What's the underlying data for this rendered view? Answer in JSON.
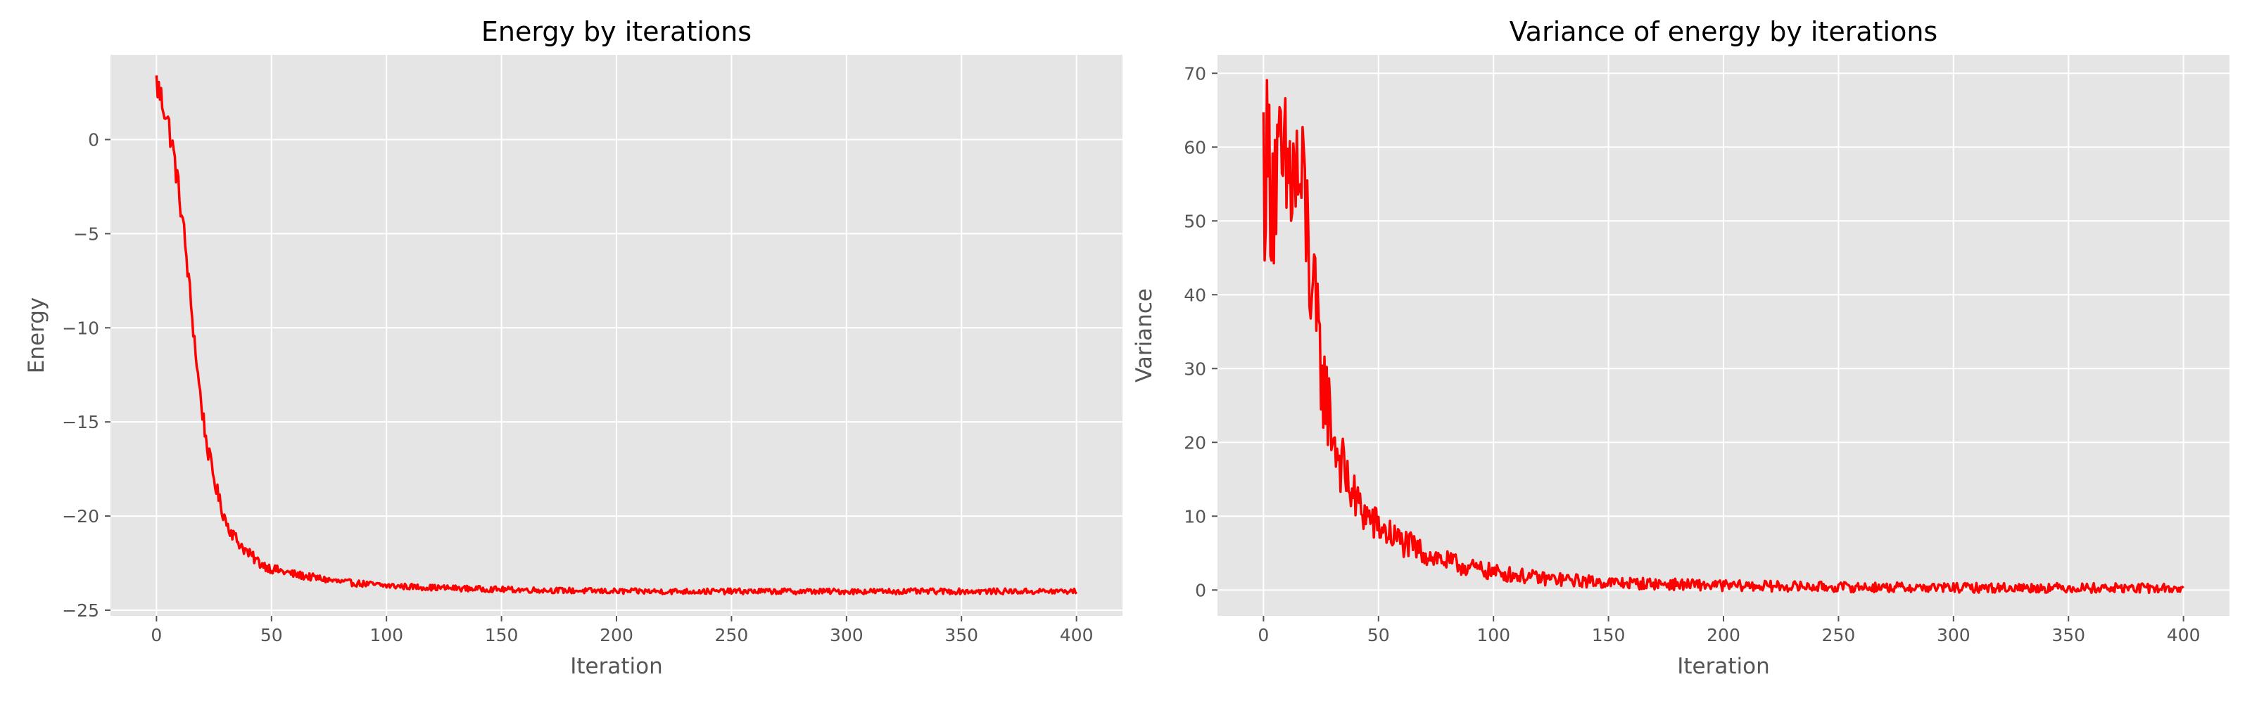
{
  "chart_data": [
    {
      "type": "line",
      "title": "Energy by iterations",
      "xlabel": "Iteration",
      "ylabel": "Energy",
      "xlim": [
        -20,
        420
      ],
      "ylim": [
        -25.3,
        4.5
      ],
      "xticks": [
        0,
        50,
        100,
        150,
        200,
        250,
        300,
        350,
        400
      ],
      "yticks": [
        0,
        -5,
        -10,
        -15,
        -20,
        -25
      ],
      "ytick_labels": [
        "0",
        "−5",
        "−10",
        "−15",
        "−20",
        "−25"
      ],
      "grid": true,
      "series": [
        {
          "color": "#ff0000",
          "x": [
            0,
            2,
            4,
            6,
            8,
            10,
            12,
            14,
            16,
            18,
            20,
            22,
            25,
            28,
            31,
            35,
            40,
            45,
            50,
            60,
            70,
            80,
            100,
            120,
            150,
            200,
            250,
            300,
            350,
            400
          ],
          "y": [
            3.0,
            2.2,
            1.5,
            0.3,
            -1.2,
            -3.0,
            -5.0,
            -7.5,
            -10.0,
            -12.5,
            -14.5,
            -16.3,
            -18.0,
            -19.5,
            -20.5,
            -21.3,
            -22.0,
            -22.5,
            -22.8,
            -23.1,
            -23.3,
            -23.5,
            -23.7,
            -23.8,
            -23.9,
            -24.0,
            -24.0,
            -24.0,
            -24.0,
            -24.0
          ],
          "noise": 0.15
        }
      ]
    },
    {
      "type": "line",
      "title": "Variance of energy by iterations",
      "xlabel": "Iteration",
      "ylabel": "Variance",
      "xlim": [
        -20,
        420
      ],
      "ylim": [
        -3.5,
        72.5
      ],
      "xticks": [
        0,
        50,
        100,
        150,
        200,
        250,
        300,
        350,
        400
      ],
      "yticks": [
        0,
        10,
        20,
        30,
        40,
        50,
        60,
        70
      ],
      "ytick_labels": [
        "0",
        "10",
        "20",
        "30",
        "40",
        "50",
        "60",
        "70"
      ],
      "grid": true,
      "series": [
        {
          "color": "#ff0000",
          "x": [
            0,
            3,
            6,
            9,
            12,
            15,
            18,
            20,
            22,
            25,
            28,
            31,
            35,
            40,
            45,
            50,
            60,
            70,
            80,
            90,
            100,
            120,
            150,
            200,
            250,
            300,
            350,
            400
          ],
          "y": [
            58,
            57,
            55,
            55,
            56,
            55,
            52,
            45,
            38,
            30,
            25,
            20,
            16,
            12,
            10,
            8.5,
            6.5,
            5.0,
            3.8,
            3.0,
            2.4,
            1.6,
            1.0,
            0.6,
            0.4,
            0.3,
            0.3,
            0.2
          ],
          "noise": 0.22
        }
      ]
    }
  ]
}
